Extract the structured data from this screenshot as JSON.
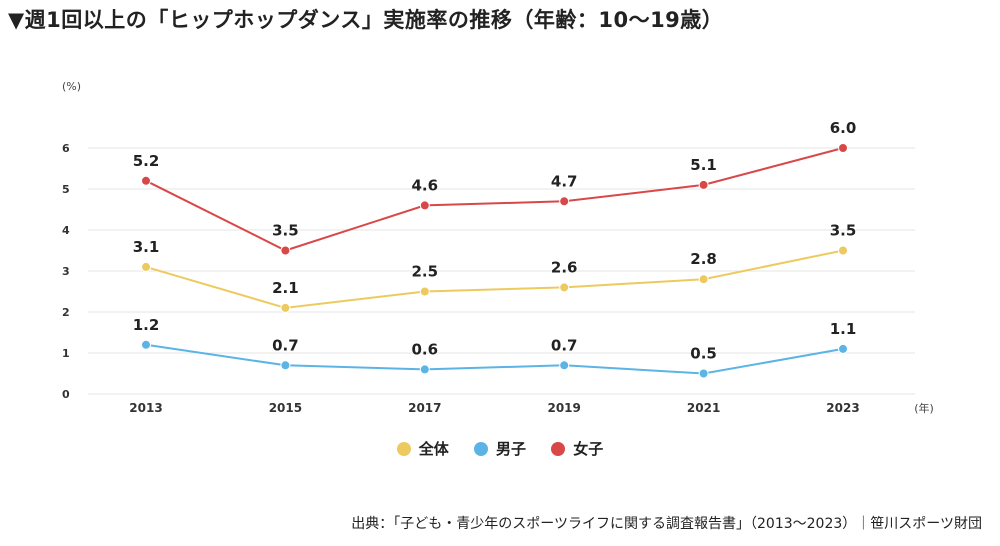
{
  "title": "▼週1回以上の「ヒップホップダンス」実施率の推移（年齢：10〜19歳）",
  "source": "出典：「子ども・青少年のスポーツライフに関する調査報告書」（2013〜2023）｜笹川スポーツ財団",
  "colors": {
    "total": "#EDCA5F",
    "male": "#5BB4E5",
    "female": "#D94848",
    "grid": "#e6e6e6"
  },
  "chart_data": {
    "type": "line",
    "title": "▼週1回以上の「ヒップホップダンス」実施率の推移（年齢：10〜19歳）",
    "ylabel": "(%)",
    "xlabel": "(年)",
    "ylim": [
      0,
      6
    ],
    "yticks": [
      "0",
      "1",
      "2",
      "3",
      "4",
      "5",
      "6"
    ],
    "categories": [
      "2013",
      "2015",
      "2017",
      "2019",
      "2021",
      "2023"
    ],
    "series": [
      {
        "name": "女子",
        "key": "female",
        "values": [
          5.2,
          3.5,
          4.6,
          4.7,
          5.1,
          6.0
        ],
        "labels": [
          "5.2",
          "3.5",
          "4.6",
          "4.7",
          "5.1",
          "6.0"
        ]
      },
      {
        "name": "全体",
        "key": "total",
        "values": [
          3.1,
          2.1,
          2.5,
          2.6,
          2.8,
          3.5
        ],
        "labels": [
          "3.1",
          "2.1",
          "2.5",
          "2.6",
          "2.8",
          "3.5"
        ]
      },
      {
        "name": "男子",
        "key": "male",
        "values": [
          1.2,
          0.7,
          0.6,
          0.7,
          0.5,
          1.1
        ],
        "labels": [
          "1.2",
          "0.7",
          "0.6",
          "0.7",
          "0.5",
          "1.1"
        ]
      }
    ],
    "legend": [
      "全体",
      "男子",
      "女子"
    ],
    "legend_position": "bottom-center"
  }
}
